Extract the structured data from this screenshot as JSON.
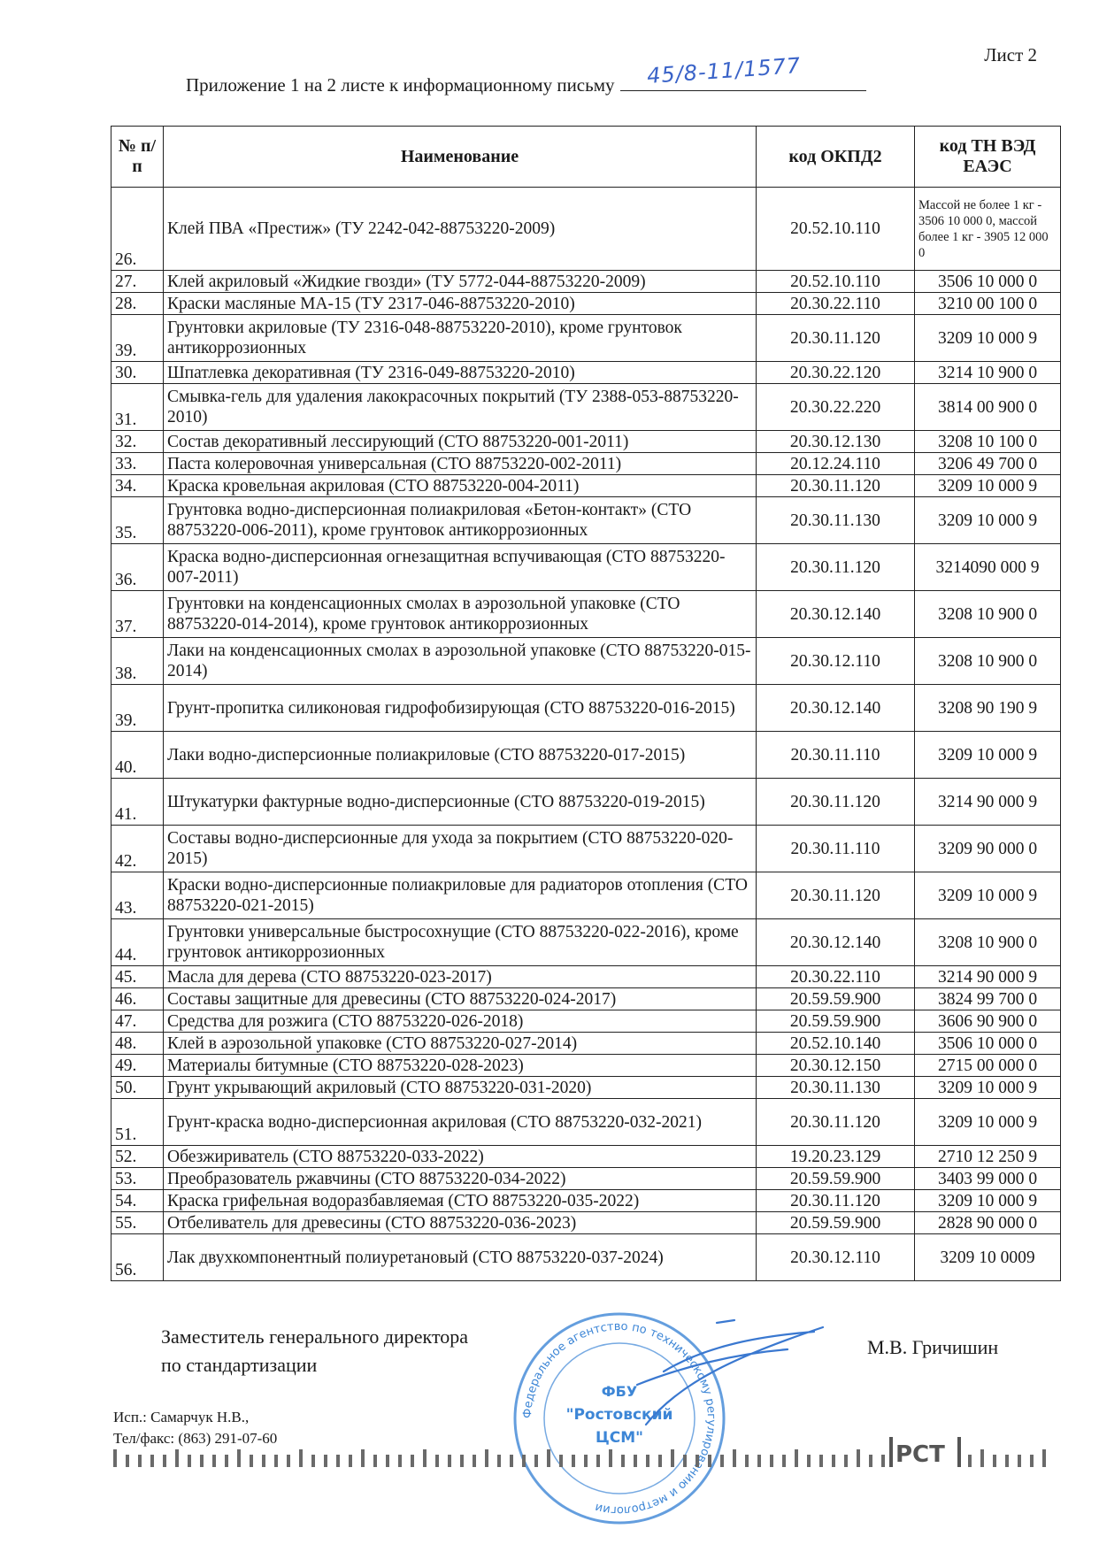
{
  "sheet_label": "Лист 2",
  "appendix": {
    "text": "Приложение 1 на 2 листе к информационному письму",
    "handwritten_number": "45/8-11/1577"
  },
  "table": {
    "headers": {
      "num": "№ п/п",
      "name": "Наименование",
      "okpd2": "код ОКПД2",
      "tnved": "код ТН ВЭД ЕАЭС"
    },
    "rows": [
      {
        "num": "26.",
        "name": "Клей ПВА «Престиж» (ТУ 2242-042-88753220-2009)",
        "okpd2": "20.52.10.110",
        "tnved": "Массой не более 1 кг - 3506 10 000 0, массой более 1 кг - 3905 12 000 0"
      },
      {
        "num": "27.",
        "name": "Клей акриловый «Жидкие гвозди» (ТУ 5772-044-88753220-2009)",
        "okpd2": "20.52.10.110",
        "tnved": "3506 10 000 0"
      },
      {
        "num": "28.",
        "name": "Краски масляные МА-15 (ТУ 2317-046-88753220-2010)",
        "okpd2": "20.30.22.110",
        "tnved": "3210 00 100 0"
      },
      {
        "num": "39.",
        "name": "Грунтовки акриловые (ТУ 2316-048-88753220-2010), кроме грунтовок антикоррозионных",
        "okpd2": "20.30.11.120",
        "tnved": "3209 10 000 9"
      },
      {
        "num": "30.",
        "name": "Шпатлевка декоративная  (ТУ 2316-049-88753220-2010)",
        "okpd2": "20.30.22.120",
        "tnved": "3214 10 900 0"
      },
      {
        "num": "31.",
        "name": "Смывка-гель для удаления лакокрасочных покрытий (ТУ 2388-053-88753220-2010)",
        "okpd2": "20.30.22.220",
        "tnved": "3814 00 900 0"
      },
      {
        "num": "32.",
        "name": "Состав декоративный лессирующий (СТО 88753220-001-2011)",
        "okpd2": "20.30.12.130",
        "tnved": "3208 10 100 0"
      },
      {
        "num": "33.",
        "name": "Паста колеровочная универсальная (СТО 88753220-002-2011)",
        "okpd2": "20.12.24.110",
        "tnved": "3206 49 700 0"
      },
      {
        "num": "34.",
        "name": "Краска кровельная акриловая (СТО 88753220-004-2011)",
        "okpd2": "20.30.11.120",
        "tnved": "3209 10 000 9"
      },
      {
        "num": "35.",
        "name": "Грунтовка водно-дисперсионная полиакриловая «Бетон-контакт» (СТО 88753220-006-2011), кроме грунтовок антикоррозионных",
        "okpd2": "20.30.11.130",
        "tnved": "3209 10 000 9"
      },
      {
        "num": "36.",
        "name": "Краска водно-дисперсионная огнезащитная вспучивающая (СТО 88753220-007-2011)",
        "okpd2": "20.30.11.120",
        "tnved": "3214090 000 9"
      },
      {
        "num": "37.",
        "name": "Грунтовки на конденсационных смолах в аэрозольной упаковке (СТО 88753220-014-2014), кроме грунтовок антикоррозионных",
        "okpd2": "20.30.12.140",
        "tnved": "3208 10 900 0"
      },
      {
        "num": "38.",
        "name": "Лаки на конденсационных смолах в аэрозольной упаковке (СТО 88753220-015-2014)",
        "okpd2": "20.30.12.110",
        "tnved": "3208 10 900 0"
      },
      {
        "num": "39.",
        "name": "Грунт-пропитка силиконовая гидрофобизирующая (СТО 88753220-016-2015)",
        "okpd2": "20.30.12.140",
        "tnved": "3208 90 190 9"
      },
      {
        "num": "40.",
        "name": "Лаки водно-дисперсионные полиакриловые (СТО 88753220-017-2015)",
        "okpd2": "20.30.11.110",
        "tnved": "3209 10 000 9"
      },
      {
        "num": "41.",
        "name": "Штукатурки фактурные водно-дисперсионные (СТО 88753220-019-2015)",
        "okpd2": "20.30.11.120",
        "tnved": "3214 90 000 9"
      },
      {
        "num": "42.",
        "name": "Составы водно-дисперсионные для ухода за покрытием (СТО 88753220-020-2015)",
        "okpd2": "20.30.11.110",
        "tnved": "3209 90 000 0"
      },
      {
        "num": "43.",
        "name": "Краски водно-дисперсионные полиакриловые для радиаторов отопления (СТО 88753220-021-2015)",
        "okpd2": "20.30.11.120",
        "tnved": "3209 10 000 9"
      },
      {
        "num": "44.",
        "name": "Грунтовки универсальные быстросохнущие (СТО 88753220-022-2016), кроме грунтовок антикоррозионных",
        "okpd2": "20.30.12.140",
        "tnved": "3208 10 900 0"
      },
      {
        "num": "45.",
        "name": "Масла для дерева (СТО 88753220-023-2017)",
        "okpd2": "20.30.22.110",
        "tnved": "3214 90 000 9"
      },
      {
        "num": "46.",
        "name": "Составы защитные для древесины (СТО 88753220-024-2017)",
        "okpd2": "20.59.59.900",
        "tnved": "3824 99 700 0"
      },
      {
        "num": "47.",
        "name": "Средства для розжига (СТО 88753220-026-2018)",
        "okpd2": "20.59.59.900",
        "tnved": "3606 90 900 0"
      },
      {
        "num": "48.",
        "name": "Клей в аэрозольной упаковке (СТО 88753220-027-2014)",
        "okpd2": "20.52.10.140",
        "tnved": "3506 10 000 0"
      },
      {
        "num": "49.",
        "name": "Материалы битумные (СТО 88753220-028-2023)",
        "okpd2": "20.30.12.150",
        "tnved": "2715 00 000 0"
      },
      {
        "num": "50.",
        "name": "Грунт укрывающий акриловый (СТО 88753220-031-2020)",
        "okpd2": "20.30.11.130",
        "tnved": "3209 10 000 9"
      },
      {
        "num": "51.",
        "name": "Грунт-краска водно-дисперсионная акриловая (СТО 88753220-032-2021)",
        "okpd2": "20.30.11.120",
        "tnved": "3209 10 000 9"
      },
      {
        "num": "52.",
        "name": "Обезжириватель (СТО 88753220-033-2022)",
        "okpd2": "19.20.23.129",
        "tnved": "2710 12 250 9"
      },
      {
        "num": "53.",
        "name": "Преобразователь ржавчины (СТО 88753220-034-2022)",
        "okpd2": "20.59.59.900",
        "tnved": "3403 99 000 0"
      },
      {
        "num": "54.",
        "name": "Краска грифельная водоразбавляемая (СТО 88753220-035-2022)",
        "okpd2": "20.30.11.120",
        "tnved": "3209 10 000 9"
      },
      {
        "num": "55.",
        "name": "Отбеливатель для древесины (СТО 88753220-036-2023)",
        "okpd2": "20.59.59.900",
        "tnved": "2828 90 000 0"
      },
      {
        "num": "56.",
        "name": "Лак двухкомпонентный полиуретановый (СТО 88753220-037-2024)",
        "okpd2": "20.30.12.110",
        "tnved": "3209 10 0009"
      }
    ]
  },
  "signature_block": {
    "position_line1": "Заместитель генерального директора",
    "position_line2": "по стандартизации",
    "name": "М.В. Гричишин"
  },
  "executor": {
    "line1": "Исп.: Самарчук Н.В.,",
    "line2": "Тел/факс: (863) 291-07-60"
  },
  "stamp": {
    "center_line1": "ФБУ",
    "center_line2": "\"Ростовский",
    "center_line3": "ЦСМ\"",
    "ring_text": "Федеральное агентство по техническому регулированию и метрологии"
  },
  "footer_logo": "РСТ",
  "colors": {
    "ink": "#1a1a1a",
    "stamp": "#3d86d6",
    "handwriting": "#3a63c8"
  }
}
